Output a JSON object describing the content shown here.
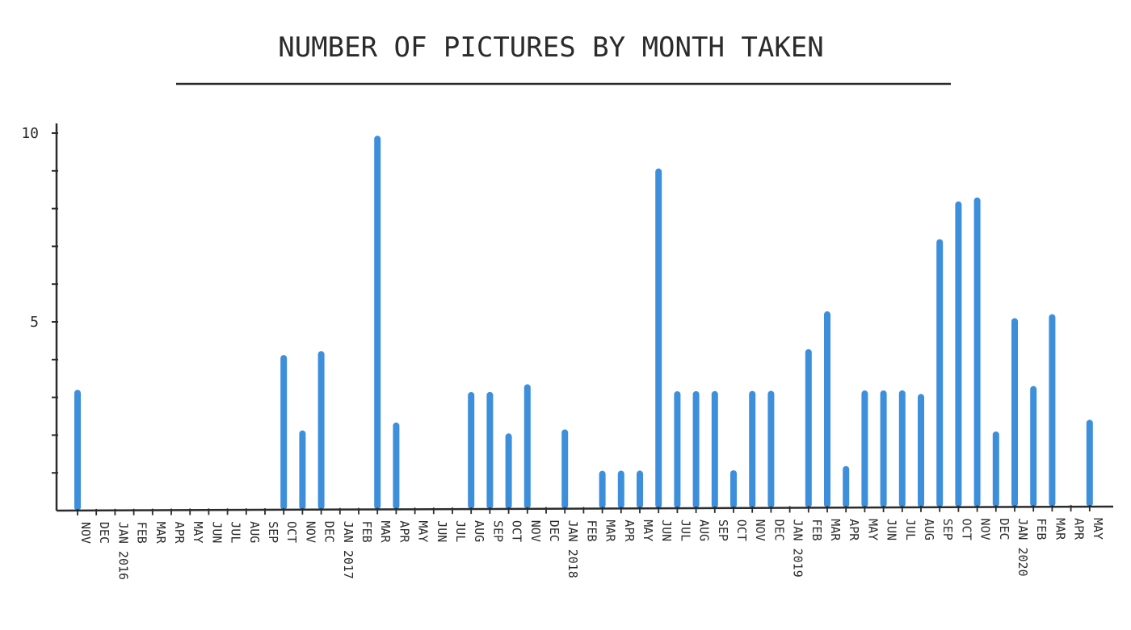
{
  "chart_data": {
    "type": "bar",
    "title": "NUMBER OF PICTURES BY MONTH TAKEN",
    "xlabel": "",
    "ylabel": "",
    "ylim": [
      0,
      10
    ],
    "yticks": [
      0,
      1,
      2,
      3,
      4,
      5,
      6,
      7,
      8,
      9,
      10
    ],
    "ytick_labels": {
      "5": "5",
      "10": "10"
    },
    "categories": [
      "NOV",
      "DEC",
      "JAN 2016",
      "FEB",
      "MAR",
      "APR",
      "MAY",
      "JUN",
      "JUL",
      "AUG",
      "SEP",
      "OCT",
      "NOV",
      "DEC",
      "JAN 2017",
      "FEB",
      "MAR",
      "APR",
      "MAY",
      "JUN",
      "JUL",
      "AUG",
      "SEP",
      "OCT",
      "NOV",
      "DEC",
      "JAN 2018",
      "FEB",
      "MAR",
      "APR",
      "MAY",
      "JUN",
      "JUL",
      "AUG",
      "SEP",
      "OCT",
      "NOV",
      "DEC",
      "JAN 2019",
      "FEB",
      "MAR",
      "APR",
      "MAY",
      "JUN",
      "JUL",
      "AUG",
      "SEP",
      "OCT",
      "NOV",
      "DEC",
      "JAN 2020",
      "FEB",
      "MAR",
      "APR",
      "MAY"
    ],
    "values": [
      3.2,
      0,
      0,
      0,
      0,
      0,
      0,
      0,
      0,
      0,
      0,
      4.1,
      2.1,
      4.2,
      0,
      0,
      9.9,
      2.3,
      0,
      0,
      0,
      3.1,
      3.1,
      2.0,
      3.3,
      0,
      2.1,
      0,
      1.0,
      1.0,
      1.0,
      9.0,
      3.1,
      3.1,
      3.1,
      1.0,
      3.1,
      3.1,
      0,
      4.2,
      5.2,
      1.1,
      3.1,
      3.1,
      3.1,
      3.0,
      7.1,
      8.1,
      8.2,
      2.0,
      5.0,
      3.2,
      5.1,
      0,
      2.3
    ],
    "colors": {
      "bar": "#3d8fdb",
      "axis": "#2b2b2b"
    },
    "grid": false,
    "legend": "none"
  }
}
